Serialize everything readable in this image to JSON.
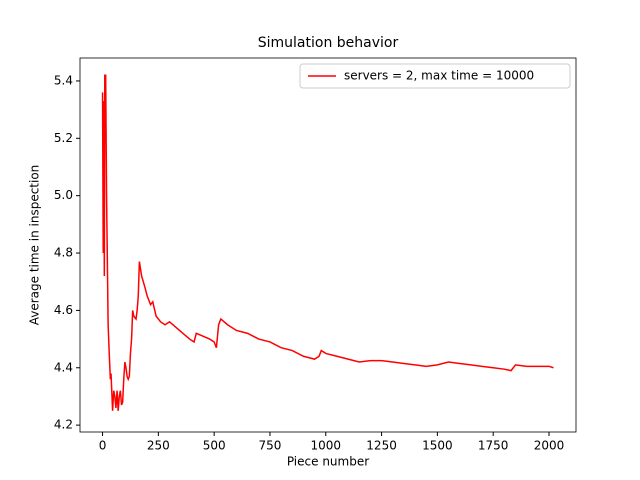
{
  "chart_data": {
    "type": "line",
    "title": "Simulation behavior",
    "x_label": "Piece number",
    "y_label": "Average time in inspection",
    "x": [
      0,
      3,
      5,
      8,
      10,
      14,
      18,
      25,
      30,
      35,
      38,
      45,
      50,
      55,
      60,
      65,
      70,
      75,
      80,
      85,
      90,
      95,
      100,
      105,
      110,
      115,
      120,
      125,
      130,
      135,
      140,
      150,
      155,
      160,
      165,
      175,
      190,
      200,
      215,
      225,
      240,
      260,
      280,
      300,
      330,
      360,
      390,
      410,
      420,
      450,
      480,
      500,
      510,
      520,
      530,
      560,
      600,
      650,
      700,
      750,
      800,
      850,
      900,
      950,
      970,
      980,
      1000,
      1050,
      1100,
      1150,
      1200,
      1250,
      1300,
      1350,
      1400,
      1450,
      1500,
      1550,
      1600,
      1650,
      1700,
      1750,
      1800,
      1830,
      1850,
      1900,
      1950,
      2000,
      2020
    ],
    "series": [
      {
        "name": "servers = 2, max time = 10000",
        "color": "#ff0000",
        "values": [
          5.36,
          4.8,
          5.33,
          4.72,
          5.42,
          5.42,
          5.0,
          4.55,
          4.45,
          4.36,
          4.38,
          4.25,
          4.32,
          4.3,
          4.26,
          4.32,
          4.25,
          4.3,
          4.32,
          4.27,
          4.28,
          4.36,
          4.42,
          4.4,
          4.37,
          4.36,
          4.37,
          4.45,
          4.5,
          4.6,
          4.58,
          4.57,
          4.6,
          4.65,
          4.77,
          4.72,
          4.68,
          4.65,
          4.62,
          4.63,
          4.58,
          4.56,
          4.55,
          4.56,
          4.54,
          4.52,
          4.5,
          4.49,
          4.52,
          4.51,
          4.5,
          4.49,
          4.47,
          4.55,
          4.57,
          4.55,
          4.53,
          4.52,
          4.5,
          4.49,
          4.47,
          4.46,
          4.44,
          4.43,
          4.44,
          4.46,
          4.45,
          4.44,
          4.43,
          4.42,
          4.425,
          4.425,
          4.42,
          4.415,
          4.41,
          4.405,
          4.41,
          4.42,
          4.415,
          4.41,
          4.405,
          4.4,
          4.395,
          4.39,
          4.41,
          4.405,
          4.405,
          4.405,
          4.4
        ]
      }
    ],
    "xlim": [
      -101,
      2121
    ],
    "ylim": [
      4.176,
      5.48
    ],
    "xticks": [
      0,
      250,
      500,
      750,
      1000,
      1250,
      1500,
      1750,
      2000
    ],
    "yticks": [
      4.2,
      4.4,
      4.6,
      4.8,
      {
        "value": 5,
        "label": "5.0"
      },
      5.2,
      5.4
    ],
    "legend": "upper right"
  }
}
